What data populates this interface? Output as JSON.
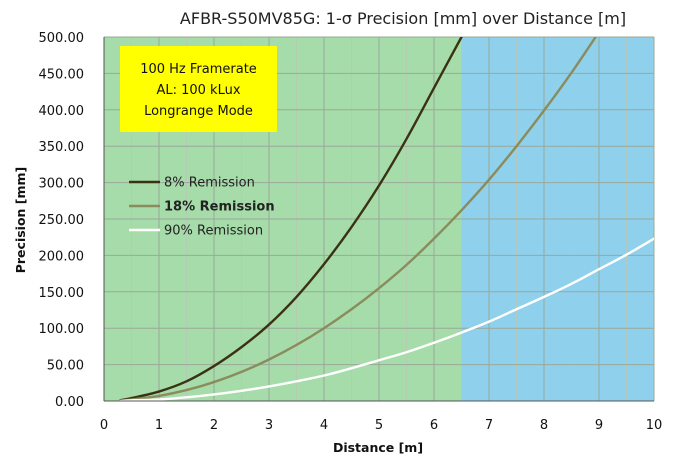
{
  "chart_data": {
    "type": "line",
    "title": "AFBR-S50MV85G: 1-σ Precision [mm] over Distance [m]",
    "xlabel": "Distance [m]",
    "ylabel": "Precision [mm]",
    "xlim": [
      0,
      10
    ],
    "ylim": [
      0,
      500
    ],
    "x_ticks": [
      "0",
      "1",
      "2",
      "3",
      "4",
      "5",
      "6",
      "7",
      "8",
      "9",
      "10"
    ],
    "y_ticks": [
      "0.00",
      "50.00",
      "100.00",
      "150.00",
      "200.00",
      "250.00",
      "300.00",
      "350.00",
      "400.00",
      "450.00",
      "500.00"
    ],
    "grid": true,
    "background_regions": [
      {
        "from": 0,
        "to": 6.5,
        "color": "#a6dca9"
      },
      {
        "from": 6.5,
        "to": 10,
        "color": "#8fd0ec"
      }
    ],
    "annotation": {
      "lines": [
        "100 Hz Framerate",
        "AL: 100 kLux",
        "Longrange Mode"
      ],
      "background": "#ffff00"
    },
    "legend_position": "left",
    "series": [
      {
        "name": "8% Remission",
        "color": "#3b3214",
        "bold": false,
        "x": [
          0.3,
          0.5,
          1.0,
          1.5,
          2.0,
          2.5,
          3.0,
          3.5,
          4.0,
          4.5,
          5.0,
          5.5,
          6.0,
          6.5
        ],
        "y": [
          1,
          4,
          13,
          27,
          48,
          74,
          105,
          143,
          188,
          239,
          296,
          360,
          430,
          500
        ]
      },
      {
        "name": "18% Remission",
        "color": "#8a8c5e",
        "bold": true,
        "x": [
          0.3,
          0.5,
          1.0,
          1.5,
          2.0,
          2.5,
          3.0,
          3.5,
          4.0,
          4.5,
          5.0,
          5.5,
          6.0,
          6.5,
          7.0,
          7.5,
          8.0,
          8.5,
          9.0
        ],
        "y": [
          0,
          2,
          7,
          15,
          26,
          40,
          57,
          77,
          100,
          126,
          155,
          187,
          223,
          262,
          304,
          350,
          399,
          451,
          507
        ]
      },
      {
        "name": "90% Remission",
        "color": "#ffffff",
        "bold": false,
        "x": [
          0.3,
          0.5,
          1.0,
          1.5,
          2.0,
          2.5,
          3.0,
          3.5,
          4.0,
          4.5,
          5.0,
          5.5,
          6.0,
          6.5,
          7.0,
          7.5,
          8.0,
          8.5,
          9.0,
          9.5,
          10.0
        ],
        "y": [
          0,
          1,
          2,
          5,
          9,
          14,
          20,
          27,
          35,
          45,
          56,
          67,
          80,
          94,
          109,
          126,
          143,
          161,
          181,
          201,
          223
        ]
      }
    ]
  }
}
